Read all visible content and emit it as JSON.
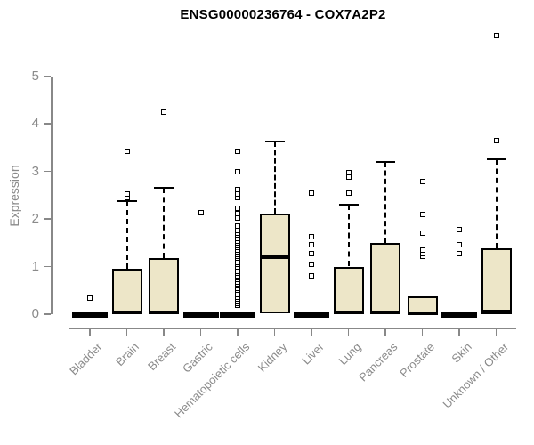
{
  "title": "ENSG00000236764 - COX7A2P2",
  "chart_data": {
    "type": "boxplot",
    "title": "ENSG00000236764 - COX7A2P2",
    "xlabel": "",
    "ylabel": "Expression",
    "ylim": [
      0,
      5
    ],
    "yticks": [
      0,
      1,
      2,
      3,
      4,
      5
    ],
    "grid": false,
    "legend": "none",
    "box_fill_color": "#ede6c8",
    "box_border_color": "#000000",
    "axis_color": "#8a8a8a",
    "categories": [
      "Bladder",
      "Brain",
      "Breast",
      "Gastric",
      "Hematopoietic cells",
      "Kidney",
      "Liver",
      "Lung",
      "Pancreas",
      "Prostate",
      "Skin",
      "Unknown / Other"
    ],
    "series": [
      {
        "category": "Bladder",
        "q1": 0,
        "median": 0.02,
        "q3": 0.05,
        "whisker_high": null,
        "outliers": [
          0.33
        ]
      },
      {
        "category": "Brain",
        "q1": 0,
        "median": 0.03,
        "q3": 0.95,
        "whisker_high": 2.37,
        "outliers": [
          2.45,
          2.53,
          3.42
        ]
      },
      {
        "category": "Breast",
        "q1": 0,
        "median": 0.03,
        "q3": 1.18,
        "whisker_high": 2.65,
        "outliers": [
          4.25
        ]
      },
      {
        "category": "Gastric",
        "q1": 0,
        "median": 0.02,
        "q3": 0.05,
        "whisker_high": null,
        "outliers": [
          2.13
        ]
      },
      {
        "category": "Hematopoietic cells",
        "q1": 0,
        "median": 0.02,
        "q3": 0.05,
        "whisker_high": null,
        "outliers": [
          0.18,
          0.23,
          0.27,
          0.32,
          0.36,
          0.41,
          0.45,
          0.5,
          0.54,
          0.59,
          0.63,
          0.68,
          0.72,
          0.77,
          0.81,
          0.86,
          0.9,
          0.95,
          0.99,
          1.04,
          1.08,
          1.13,
          1.17,
          1.22,
          1.26,
          1.31,
          1.35,
          1.4,
          1.44,
          1.49,
          1.53,
          1.58,
          1.62,
          1.67,
          1.71,
          1.76,
          1.8,
          1.85,
          2.02,
          2.12,
          2.22,
          2.45,
          2.53,
          2.62,
          3.0,
          3.42
        ]
      },
      {
        "category": "Kidney",
        "q1": 0.02,
        "median": 1.2,
        "q3": 2.12,
        "whisker_high": 3.62,
        "outliers": []
      },
      {
        "category": "Liver",
        "q1": 0,
        "median": 0.02,
        "q3": 0.05,
        "whisker_high": null,
        "outliers": [
          0.8,
          1.05,
          1.27,
          1.45,
          1.62,
          2.55
        ]
      },
      {
        "category": "Lung",
        "q1": 0,
        "median": 0.03,
        "q3": 1.0,
        "whisker_high": 2.3,
        "outliers": [
          2.55,
          2.88,
          2.97
        ]
      },
      {
        "category": "Pancreas",
        "q1": 0,
        "median": 0.04,
        "q3": 1.5,
        "whisker_high": 3.2,
        "outliers": []
      },
      {
        "category": "Prostate",
        "q1": 0,
        "median": 0.02,
        "q3": 0.37,
        "whisker_high": null,
        "outliers": [
          1.22,
          1.28,
          1.35,
          1.7,
          2.1,
          2.78
        ]
      },
      {
        "category": "Skin",
        "q1": 0,
        "median": 0.02,
        "q3": 0.05,
        "whisker_high": null,
        "outliers": [
          1.27,
          1.45,
          1.78
        ]
      },
      {
        "category": "Unknown / Other",
        "q1": 0,
        "median": 0.05,
        "q3": 1.38,
        "whisker_high": 3.25,
        "outliers": [
          3.65,
          5.85
        ]
      }
    ]
  }
}
